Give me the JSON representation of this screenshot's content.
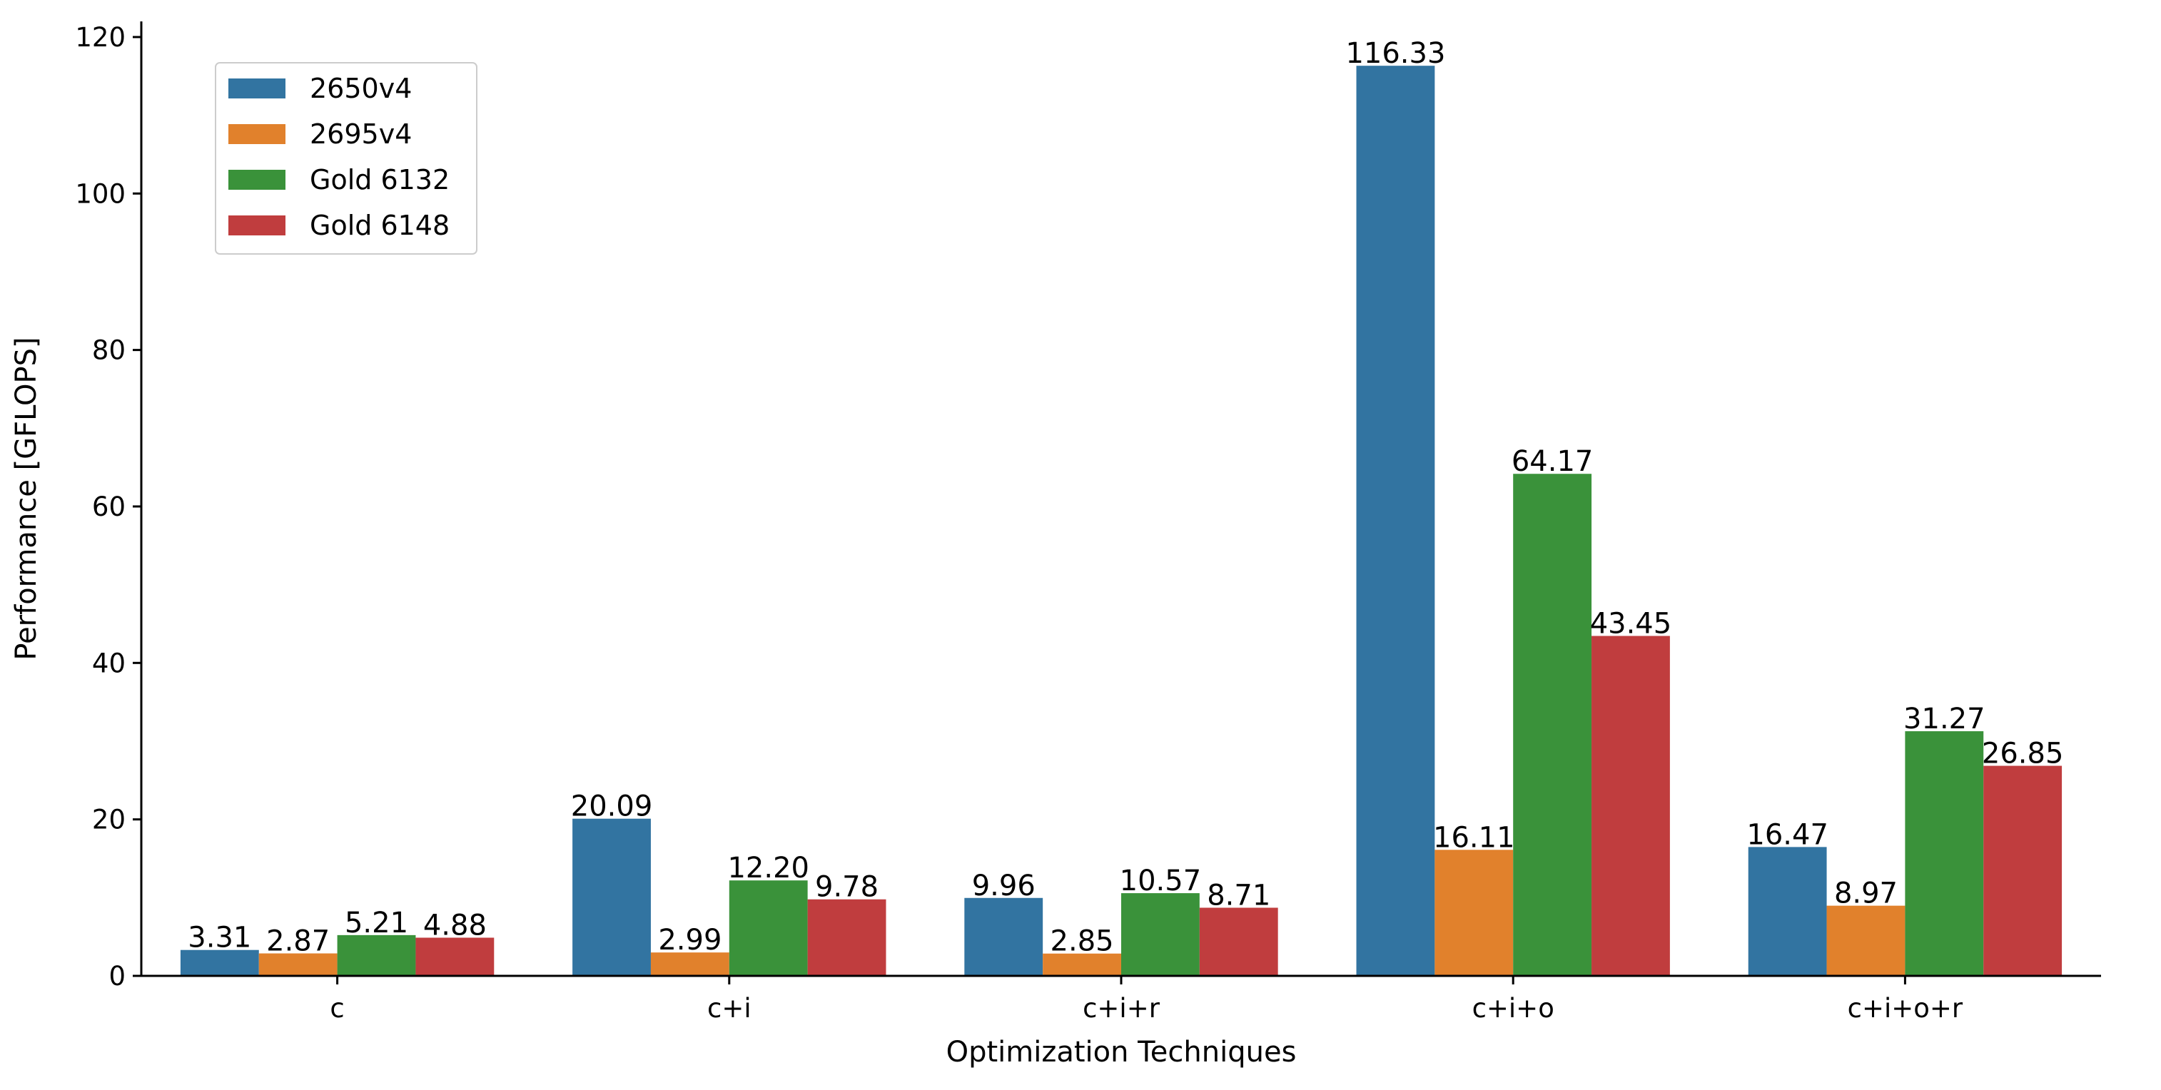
{
  "chart_data": {
    "type": "bar",
    "title": "",
    "xlabel": "Optimization Techniques",
    "ylabel": "Performance [GFLOPS]",
    "ylim": [
      0,
      122
    ],
    "yticks": [
      0,
      20,
      40,
      60,
      80,
      100,
      120
    ],
    "categories": [
      "c",
      "c+i",
      "c+i+r",
      "c+i+o",
      "c+i+o+r"
    ],
    "series": [
      {
        "name": "2650v4",
        "color": "#3274a1",
        "values": [
          3.31,
          20.09,
          9.96,
          116.33,
          16.47
        ],
        "labels": [
          "3.31",
          "20.09",
          "9.96",
          "116.33",
          "16.47"
        ]
      },
      {
        "name": "2695v4",
        "color": "#e1812c",
        "values": [
          2.87,
          2.99,
          2.85,
          16.11,
          8.97
        ],
        "labels": [
          "2.87",
          "2.99",
          "2.85",
          "16.11",
          "8.97"
        ]
      },
      {
        "name": "Gold 6132",
        "color": "#3a923a",
        "values": [
          5.21,
          12.2,
          10.57,
          64.17,
          31.27
        ],
        "labels": [
          "5.21",
          "12.20",
          "10.57",
          "64.17",
          "31.27"
        ]
      },
      {
        "name": "Gold 6148",
        "color": "#c03d3e",
        "values": [
          4.88,
          9.78,
          8.71,
          43.45,
          26.85
        ],
        "labels": [
          "4.88",
          "9.78",
          "8.71",
          "43.45",
          "26.85"
        ]
      }
    ],
    "legend": {
      "position": "top-left"
    },
    "grid": false
  }
}
